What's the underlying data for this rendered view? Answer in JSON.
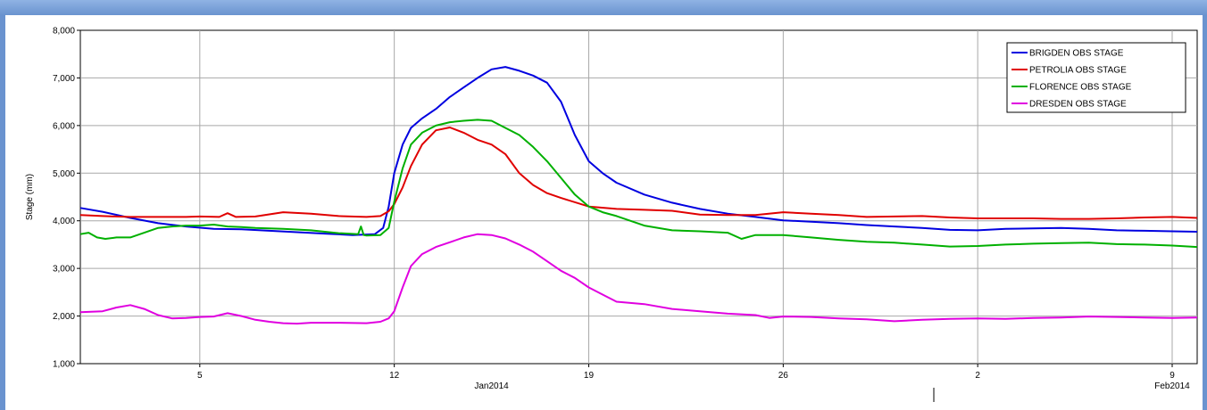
{
  "chart_data": {
    "type": "line",
    "ylabel": "Stage (mm)",
    "ylim": [
      1000,
      8000
    ],
    "y_ticks": [
      "1,000",
      "2,000",
      "3,000",
      "4,000",
      "5,000",
      "6,000",
      "7,000",
      "8,000"
    ],
    "y_tick_values": [
      1000,
      2000,
      3000,
      4000,
      5000,
      6000,
      7000,
      8000
    ],
    "xlim": [
      0.7,
      40.9
    ],
    "x_units": "days from 1 Jan 2014",
    "x_ticks": [
      {
        "label": "5",
        "day": 5
      },
      {
        "label": "12",
        "day": 12
      },
      {
        "label": "19",
        "day": 19
      },
      {
        "label": "26",
        "day": 26
      },
      {
        "label": "2",
        "day": 33
      },
      {
        "label": "9",
        "day": 40
      }
    ],
    "period_labels": [
      {
        "label": "Jan2014",
        "day": 15.5
      },
      {
        "label": "Feb2014",
        "day": 40
      }
    ],
    "grid": true,
    "legend": "top-right",
    "series": [
      {
        "name": "BRIGDEN OBS STAGE",
        "color": "#0000e0",
        "x": [
          0.7,
          1.5,
          2.5,
          3.5,
          4.5,
          5.5,
          6.5,
          7.5,
          8.5,
          9.5,
          10.5,
          11.3,
          11.6,
          11.8,
          12.0,
          12.3,
          12.6,
          13.0,
          13.5,
          14.0,
          14.5,
          15.0,
          15.5,
          16.0,
          16.5,
          17.0,
          17.5,
          18.0,
          18.5,
          19.0,
          19.5,
          20.0,
          21.0,
          22.0,
          23.0,
          24.0,
          25.0,
          26.0,
          27.0,
          28.0,
          29.0,
          30.0,
          31.0,
          32.0,
          33.0,
          34.0,
          35.0,
          36.0,
          37.0,
          38.0,
          39.0,
          40.0,
          40.9
        ],
        "y": [
          4270,
          4190,
          4060,
          3950,
          3880,
          3830,
          3820,
          3790,
          3760,
          3730,
          3700,
          3720,
          3850,
          4300,
          5000,
          5600,
          5950,
          6150,
          6350,
          6600,
          6800,
          7000,
          7180,
          7230,
          7150,
          7050,
          6900,
          6500,
          5800,
          5250,
          5000,
          4800,
          4550,
          4380,
          4250,
          4150,
          4080,
          4010,
          3980,
          3950,
          3910,
          3880,
          3850,
          3810,
          3800,
          3830,
          3840,
          3850,
          3830,
          3800,
          3790,
          3780,
          3770
        ]
      },
      {
        "name": "PETROLIA OBS STAGE",
        "color": "#e00000",
        "x": [
          0.7,
          1.5,
          2.5,
          3.5,
          4.5,
          5.0,
          5.7,
          6.0,
          6.3,
          7.0,
          8.0,
          9.0,
          10.0,
          11.0,
          11.5,
          11.8,
          12.0,
          12.3,
          12.6,
          13.0,
          13.5,
          14.0,
          14.5,
          15.0,
          15.5,
          16.0,
          16.5,
          17.0,
          17.5,
          18.0,
          19.0,
          20.0,
          21.0,
          22.0,
          23.0,
          24.0,
          25.0,
          26.0,
          27.0,
          28.0,
          29.0,
          30.0,
          31.0,
          32.0,
          33.0,
          34.0,
          35.0,
          36.0,
          37.0,
          38.0,
          39.0,
          40.0,
          40.9
        ],
        "y": [
          4120,
          4100,
          4080,
          4080,
          4080,
          4090,
          4080,
          4160,
          4080,
          4090,
          4180,
          4150,
          4100,
          4080,
          4100,
          4200,
          4350,
          4700,
          5150,
          5600,
          5900,
          5960,
          5850,
          5700,
          5600,
          5400,
          5000,
          4750,
          4580,
          4480,
          4300,
          4250,
          4230,
          4210,
          4130,
          4120,
          4120,
          4180,
          4150,
          4120,
          4080,
          4090,
          4100,
          4070,
          4050,
          4050,
          4050,
          4040,
          4040,
          4050,
          4070,
          4080,
          4060
        ]
      },
      {
        "name": "FLORENCE OBS STAGE",
        "color": "#00b000",
        "x": [
          0.7,
          1.0,
          1.3,
          1.6,
          2.0,
          2.5,
          3.0,
          3.5,
          4.0,
          4.5,
          5.0,
          5.5,
          6.0,
          6.5,
          7.0,
          8.0,
          9.0,
          10.0,
          10.7,
          10.8,
          10.9,
          11.0,
          11.5,
          11.8,
          12.0,
          12.3,
          12.6,
          13.0,
          13.5,
          14.0,
          14.5,
          15.0,
          15.5,
          16.0,
          16.5,
          17.0,
          17.5,
          18.0,
          18.5,
          19.0,
          19.5,
          20.0,
          21.0,
          22.0,
          23.0,
          24.0,
          24.5,
          25.0,
          26.0,
          27.0,
          28.0,
          29.0,
          30.0,
          31.0,
          32.0,
          33.0,
          34.0,
          35.0,
          36.0,
          37.0,
          38.0,
          39.0,
          40.0,
          40.9
        ],
        "y": [
          3720,
          3750,
          3650,
          3620,
          3650,
          3650,
          3750,
          3850,
          3880,
          3900,
          3900,
          3920,
          3880,
          3870,
          3850,
          3830,
          3800,
          3740,
          3720,
          3880,
          3700,
          3690,
          3700,
          3850,
          4400,
          5100,
          5600,
          5850,
          6000,
          6070,
          6100,
          6120,
          6100,
          5950,
          5800,
          5550,
          5250,
          4900,
          4550,
          4300,
          4180,
          4100,
          3900,
          3800,
          3780,
          3750,
          3620,
          3700,
          3700,
          3650,
          3600,
          3560,
          3540,
          3500,
          3460,
          3470,
          3500,
          3520,
          3530,
          3540,
          3510,
          3500,
          3480,
          3450
        ]
      },
      {
        "name": "DRESDEN OBS STAGE",
        "color": "#e000e0",
        "x": [
          0.7,
          1.5,
          2.0,
          2.5,
          3.0,
          3.5,
          4.0,
          4.5,
          5.0,
          5.5,
          6.0,
          6.5,
          7.0,
          7.5,
          8.0,
          8.5,
          9.0,
          10.0,
          11.0,
          11.5,
          11.8,
          12.0,
          12.3,
          12.6,
          13.0,
          13.5,
          14.0,
          14.5,
          15.0,
          15.5,
          16.0,
          16.5,
          17.0,
          17.5,
          18.0,
          18.5,
          19.0,
          19.5,
          20.0,
          21.0,
          22.0,
          23.0,
          24.0,
          25.0,
          25.5,
          26.0,
          27.0,
          28.0,
          29.0,
          30.0,
          31.0,
          32.0,
          33.0,
          34.0,
          35.0,
          36.0,
          37.0,
          38.0,
          39.0,
          40.0,
          40.9
        ],
        "y": [
          2080,
          2100,
          2180,
          2230,
          2150,
          2020,
          1950,
          1960,
          1980,
          1990,
          2060,
          2000,
          1920,
          1880,
          1850,
          1840,
          1860,
          1860,
          1850,
          1880,
          1950,
          2100,
          2600,
          3050,
          3300,
          3450,
          3550,
          3650,
          3720,
          3700,
          3630,
          3500,
          3350,
          3150,
          2950,
          2800,
          2600,
          2450,
          2300,
          2250,
          2150,
          2100,
          2050,
          2020,
          1960,
          1990,
          1980,
          1950,
          1930,
          1890,
          1920,
          1940,
          1950,
          1940,
          1960,
          1970,
          1990,
          1980,
          1970,
          1960,
          1970
        ]
      }
    ]
  }
}
